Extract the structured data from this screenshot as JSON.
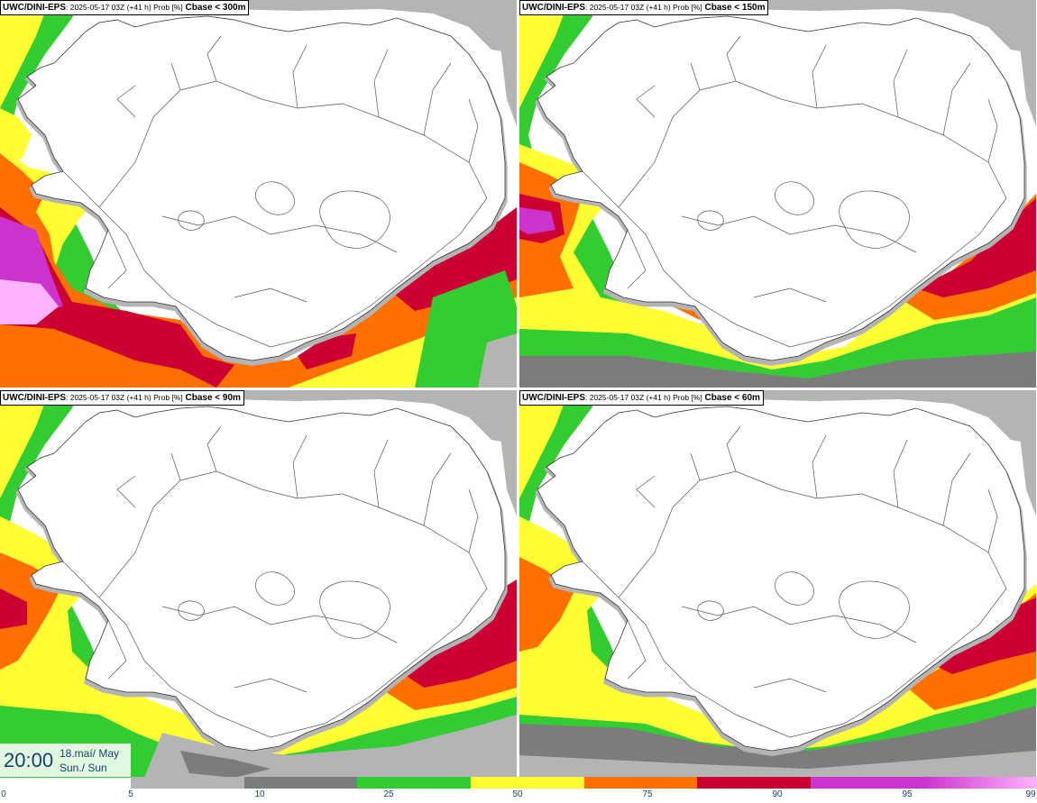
{
  "panels": [
    {
      "model": "UWC/DINI-EPS",
      "meta": ": 2025-05-17 03Z (+41 h) Prob [%]",
      "param": "Cbase < 300m",
      "variant": "p300"
    },
    {
      "model": "UWC/DINI-EPS",
      "meta": ": 2025-05-17 03Z (+41 h) Prob [%]",
      "param": "Cbase < 150m",
      "variant": "p150"
    },
    {
      "model": "UWC/DINI-EPS",
      "meta": ": 2025-05-17 03Z (+41 h) Prob [%]",
      "param": "Cbase < 90m",
      "variant": "p90"
    },
    {
      "model": "UWC/DINI-EPS",
      "meta": ": 2025-05-17 03Z (+41 h) Prob [%]",
      "param": "Cbase < 60m",
      "variant": "p60"
    }
  ],
  "valid_time": {
    "time": "20:00",
    "date_line1": "18.maí/ May",
    "date_line2": "Sun./ Sun"
  },
  "colorbar": {
    "ticks": [
      "0",
      "5",
      "10",
      "25",
      "50",
      "75",
      "90",
      "95",
      "99"
    ],
    "colors": [
      "#b4b4b4",
      "#7c7c7c",
      "#33cc33",
      "#ffff33",
      "#ff7000",
      "#cc0033",
      "#cc33cc",
      "#ffb4ff"
    ]
  },
  "colors": {
    "ocean_light_gray": "#b4b4b4",
    "dark_gray": "#7c7c7c",
    "green": "#33cc33",
    "yellow": "#ffff33",
    "orange": "#ff7000",
    "red": "#cc0033",
    "magenta": "#cc33cc",
    "pink": "#ffb4ff"
  }
}
